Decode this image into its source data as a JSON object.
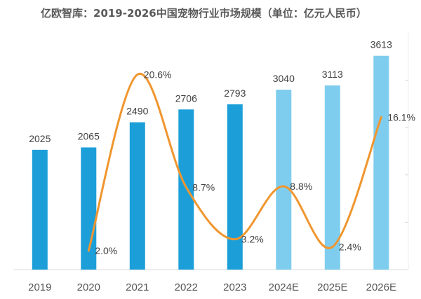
{
  "chart_data": {
    "type": "bar",
    "title": "亿欧智库：2019-2026中国宠物行业市场规模（单位：亿元人民币）",
    "categories": [
      "2019",
      "2020",
      "2021",
      "2022",
      "2023",
      "2024E",
      "2025E",
      "2026E"
    ],
    "series": [
      {
        "type": "bar",
        "values": [
          2025,
          2065,
          2490,
          2706,
          2793,
          3040,
          3113,
          3613
        ],
        "labels": [
          "2025",
          "2065",
          "2490",
          "2706",
          "2793",
          "3040",
          "3113",
          "3613"
        ],
        "colors": [
          "#1c9fd9",
          "#1c9fd9",
          "#1c9fd9",
          "#1c9fd9",
          "#1c9fd9",
          "#7fcdee",
          "#7fcdee",
          "#7fcdee"
        ]
      },
      {
        "type": "line",
        "smooth": true,
        "values": [
          null,
          2.0,
          20.6,
          8.7,
          3.2,
          8.8,
          2.4,
          16.1
        ],
        "labels": [
          null,
          "2.0%",
          "20.6%",
          "8.7%",
          "3.2%",
          "8.8%",
          "2.4%",
          "16.1%"
        ],
        "color": "#f0962f"
      }
    ],
    "ylim": [
      0,
      4000
    ],
    "y2lim": [
      0,
      25
    ],
    "grid": false
  }
}
